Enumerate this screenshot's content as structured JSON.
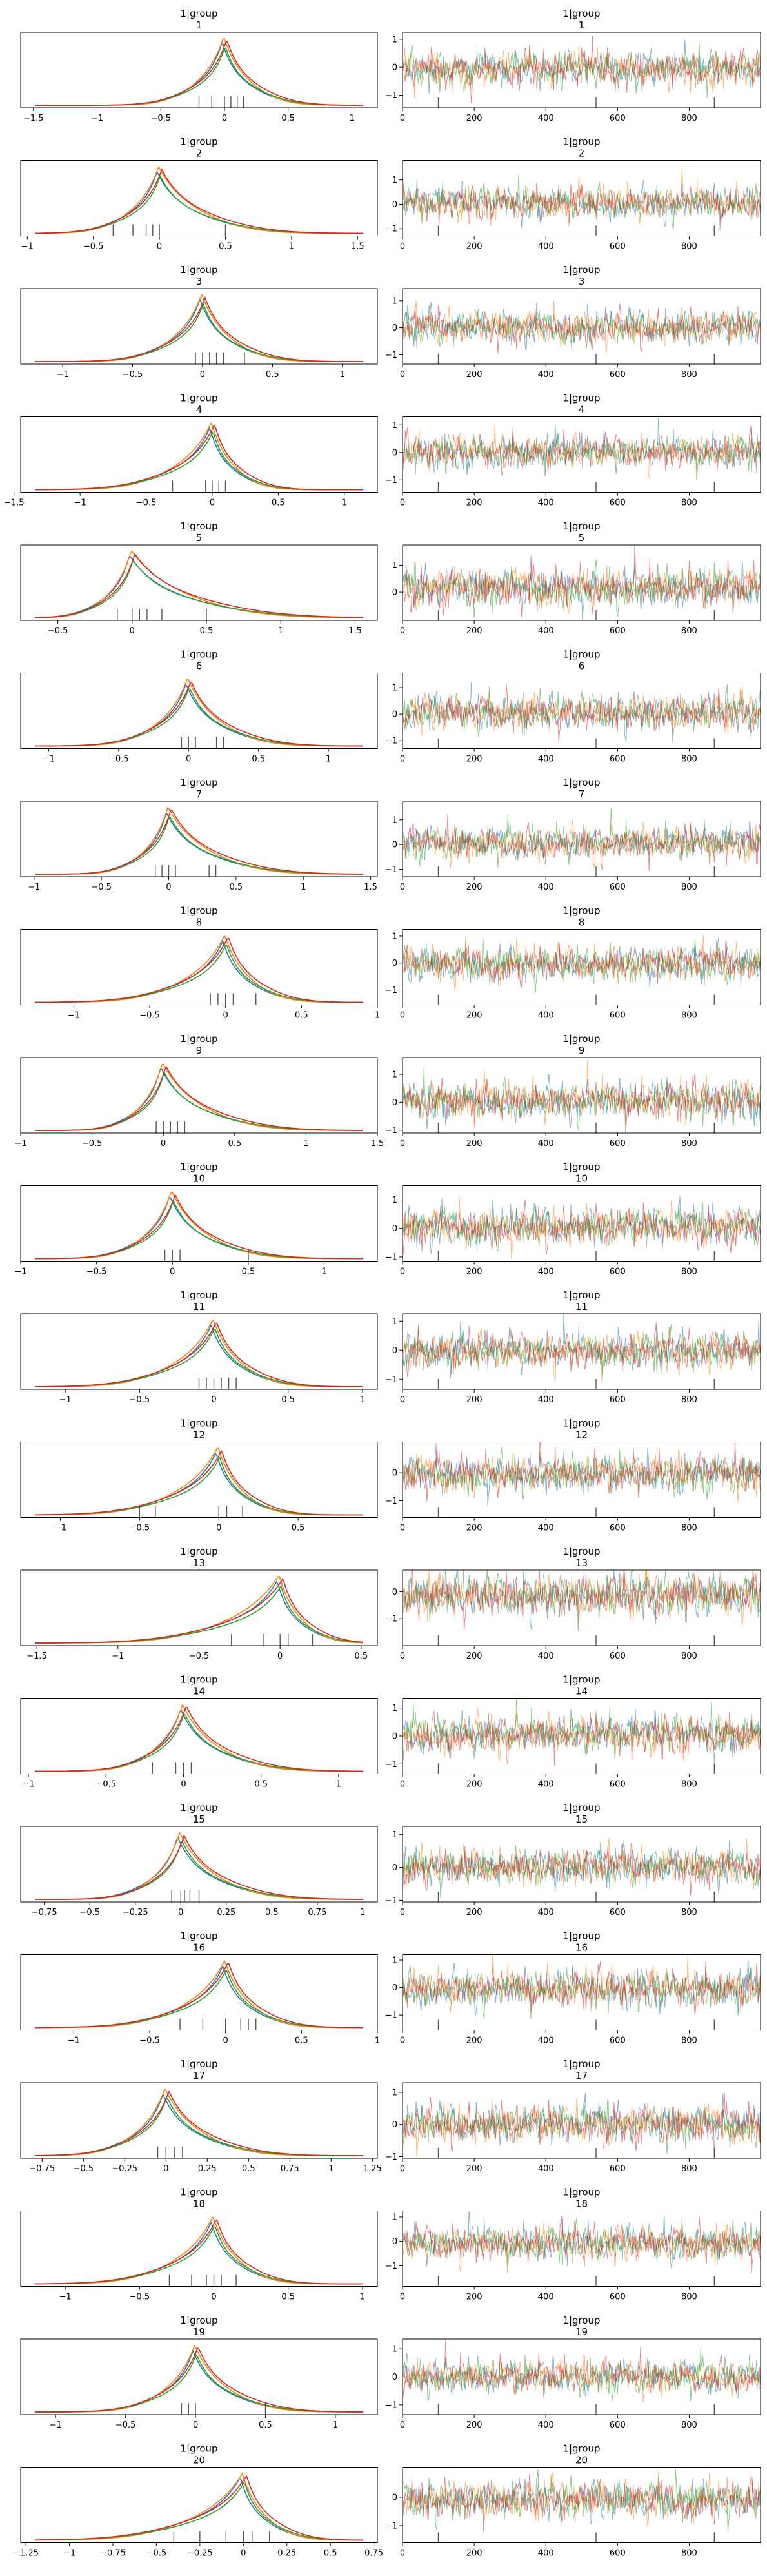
{
  "chart_data": {
    "type": "line",
    "layout": "trace-plot",
    "chains": [
      {
        "color": "#1f77b4"
      },
      {
        "color": "#ff7f0e"
      },
      {
        "color": "#2ca02c"
      },
      {
        "color": "#d62728"
      }
    ],
    "trace_x_ticks": [
      0,
      200,
      400,
      600,
      800
    ],
    "trace_draws": 1000,
    "rug_color": "#555555",
    "panels": [
      {
        "title_line1": "1|group",
        "title_line2": "1",
        "kde_xlim": [
          -1.6,
          1.2
        ],
        "kde_ticks": [
          -1.5,
          -1.0,
          -0.5,
          0.0,
          0.5,
          1.0
        ],
        "mode": 0.0,
        "scale_left": 0.12,
        "scale_right": 0.12,
        "peak": 1.0,
        "rug": [
          -0.2,
          -0.1,
          0.0,
          0.05,
          0.1,
          0.15
        ],
        "trace_ylim": [
          -1.45,
          1.25
        ],
        "trace_ticks": [
          -1,
          0,
          1
        ],
        "trace_center": -0.05,
        "trace_sd": 0.28
      },
      {
        "title_line1": "1|group",
        "title_line2": "2",
        "kde_xlim": [
          -1.05,
          1.65
        ],
        "kde_ticks": [
          -1.0,
          -0.5,
          0.0,
          0.5,
          1.0,
          1.5
        ],
        "mode": 0.0,
        "scale_left": 0.12,
        "scale_right": 0.18,
        "peak": 1.0,
        "rug": [
          -0.35,
          -0.2,
          -0.1,
          -0.05,
          0.0,
          0.5
        ],
        "trace_ylim": [
          -1.3,
          1.8
        ],
        "trace_ticks": [
          -1,
          0,
          1
        ],
        "trace_center": 0.05,
        "trace_sd": 0.3
      },
      {
        "title_line1": "1|group",
        "title_line2": "3",
        "kde_xlim": [
          -1.3,
          1.25
        ],
        "kde_ticks": [
          -1.0,
          -0.5,
          0.0,
          0.5,
          1.0
        ],
        "mode": 0.0,
        "scale_left": 0.12,
        "scale_right": 0.12,
        "peak": 1.0,
        "rug": [
          -0.05,
          0.0,
          0.05,
          0.1,
          0.15,
          0.3
        ],
        "trace_ylim": [
          -1.35,
          1.45
        ],
        "trace_ticks": [
          -1,
          0,
          1
        ],
        "trace_center": 0.0,
        "trace_sd": 0.28
      },
      {
        "title_line1": "1|group",
        "title_line2": "4",
        "kde_xlim": [
          -1.45,
          1.25
        ],
        "kde_ticks": [
          -1.5,
          -1.0,
          -0.5,
          0.0,
          0.5,
          1.0
        ],
        "mode": 0.0,
        "scale_left": 0.16,
        "scale_right": 0.1,
        "peak": 1.0,
        "rug": [
          -0.3,
          -0.05,
          0.0,
          0.05,
          0.1
        ],
        "trace_ylim": [
          -1.45,
          1.3
        ],
        "trace_ticks": [
          -1,
          0,
          1
        ],
        "trace_center": 0.0,
        "trace_sd": 0.27
      },
      {
        "title_line1": "1|group",
        "title_line2": "5",
        "kde_xlim": [
          -0.75,
          1.65
        ],
        "kde_ticks": [
          -0.5,
          0.0,
          0.5,
          1.0,
          1.5
        ],
        "mode": 0.0,
        "scale_left": 0.09,
        "scale_right": 0.22,
        "peak": 1.0,
        "rug": [
          -0.1,
          0.0,
          0.05,
          0.1,
          0.2,
          0.5
        ],
        "trace_ylim": [
          -1.05,
          1.75
        ],
        "trace_ticks": [
          0,
          1
        ],
        "trace_center": 0.15,
        "trace_sd": 0.33
      },
      {
        "title_line1": "1|group",
        "title_line2": "6",
        "kde_xlim": [
          -1.2,
          1.35
        ],
        "kde_ticks": [
          -1.0,
          -0.5,
          0.0,
          0.5,
          1.0
        ],
        "mode": 0.0,
        "scale_left": 0.12,
        "scale_right": 0.14,
        "peak": 1.0,
        "rug": [
          -0.05,
          0.0,
          0.05,
          0.2,
          0.25
        ],
        "trace_ylim": [
          -1.3,
          1.55
        ],
        "trace_ticks": [
          -1,
          0,
          1
        ],
        "trace_center": 0.05,
        "trace_sd": 0.3
      },
      {
        "title_line1": "1|group",
        "title_line2": "7",
        "kde_xlim": [
          -1.1,
          1.55
        ],
        "kde_ticks": [
          -1.0,
          -0.5,
          0.0,
          0.5,
          1.0,
          1.5
        ],
        "mode": 0.0,
        "scale_left": 0.1,
        "scale_right": 0.18,
        "peak": 1.0,
        "rug": [
          -0.1,
          -0.05,
          0.0,
          0.05,
          0.3,
          0.35
        ],
        "trace_ylim": [
          -1.3,
          1.75
        ],
        "trace_ticks": [
          -1,
          0,
          1
        ],
        "trace_center": 0.05,
        "trace_sd": 0.3
      },
      {
        "title_line1": "1|group",
        "title_line2": "8",
        "kde_xlim": [
          -1.35,
          1.0
        ],
        "kde_ticks": [
          -1.0,
          -0.5,
          0.0,
          0.5,
          1.0
        ],
        "mode": 0.0,
        "scale_left": 0.15,
        "scale_right": 0.1,
        "peak": 1.0,
        "rug": [
          -0.1,
          -0.05,
          0.0,
          0.05,
          0.2
        ],
        "trace_ylim": [
          -1.55,
          1.25
        ],
        "trace_ticks": [
          -1,
          0,
          1
        ],
        "trace_center": -0.05,
        "trace_sd": 0.3
      },
      {
        "title_line1": "1|group",
        "title_line2": "9",
        "kde_xlim": [
          -1.0,
          1.5
        ],
        "kde_ticks": [
          -1.0,
          -0.5,
          0.0,
          0.5,
          1.0,
          1.5
        ],
        "mode": 0.0,
        "scale_left": 0.09,
        "scale_right": 0.17,
        "peak": 1.0,
        "rug": [
          -0.05,
          0.0,
          0.05,
          0.1,
          0.15
        ],
        "trace_ylim": [
          -1.1,
          1.6
        ],
        "trace_ticks": [
          -1,
          0,
          1
        ],
        "trace_center": 0.05,
        "trace_sd": 0.3
      },
      {
        "title_line1": "1|group",
        "title_line2": "10",
        "kde_xlim": [
          -1.0,
          1.35
        ],
        "kde_ticks": [
          -1.0,
          -0.5,
          0.0,
          0.5,
          1.0
        ],
        "mode": 0.0,
        "scale_left": 0.1,
        "scale_right": 0.14,
        "peak": 1.0,
        "rug": [
          -0.05,
          0.0,
          0.05,
          0.5
        ],
        "trace_ylim": [
          -1.15,
          1.5
        ],
        "trace_ticks": [
          -1,
          0,
          1
        ],
        "trace_center": 0.05,
        "trace_sd": 0.3
      },
      {
        "title_line1": "1|group",
        "title_line2": "11",
        "kde_xlim": [
          -1.3,
          1.1
        ],
        "kde_ticks": [
          -1.0,
          -0.5,
          0.0,
          0.5,
          1.0
        ],
        "mode": 0.0,
        "scale_left": 0.15,
        "scale_right": 0.11,
        "peak": 1.0,
        "rug": [
          -0.1,
          -0.05,
          0.0,
          0.05,
          0.1,
          0.15
        ],
        "trace_ylim": [
          -1.35,
          1.25
        ],
        "trace_ticks": [
          -1,
          0,
          1
        ],
        "trace_center": -0.05,
        "trace_sd": 0.28
      },
      {
        "title_line1": "1|group",
        "title_line2": "12",
        "kde_xlim": [
          -1.25,
          1.0
        ],
        "kde_ticks": [
          -1.0,
          -0.5,
          0.0,
          0.5
        ],
        "mode": 0.0,
        "scale_left": 0.15,
        "scale_right": 0.09,
        "peak": 1.0,
        "rug": [
          -0.5,
          -0.4,
          0.0,
          0.05,
          0.15
        ],
        "trace_ylim": [
          -1.6,
          1.1
        ],
        "trace_ticks": [
          -1,
          0
        ],
        "trace_center": -0.05,
        "trace_sd": 0.3
      },
      {
        "title_line1": "1|group",
        "title_line2": "13",
        "kde_xlim": [
          -1.6,
          0.6
        ],
        "kde_ticks": [
          -1.5,
          -1.0,
          -0.5,
          0.0,
          0.5
        ],
        "mode": 0.0,
        "scale_left": 0.18,
        "scale_right": 0.08,
        "peak": 1.0,
        "rug": [
          -0.3,
          -0.1,
          0.0,
          0.05,
          0.2
        ],
        "trace_ylim": [
          -2.0,
          0.8
        ],
        "trace_ticks": [
          -1,
          0
        ],
        "trace_center": -0.15,
        "trace_sd": 0.35
      },
      {
        "title_line1": "1|group",
        "title_line2": "14",
        "kde_xlim": [
          -1.05,
          1.25
        ],
        "kde_ticks": [
          -1.0,
          -0.5,
          0.0,
          0.5,
          1.0
        ],
        "mode": 0.0,
        "scale_left": 0.1,
        "scale_right": 0.14,
        "peak": 1.0,
        "rug": [
          -0.2,
          -0.05,
          0.0,
          0.05
        ],
        "trace_ylim": [
          -1.35,
          1.35
        ],
        "trace_ticks": [
          -1,
          0,
          1
        ],
        "trace_center": 0.05,
        "trace_sd": 0.3
      },
      {
        "title_line1": "1|group",
        "title_line2": "15",
        "kde_xlim": [
          -0.88,
          1.08
        ],
        "kde_ticks": [
          -0.75,
          -0.5,
          -0.25,
          0.0,
          0.25,
          0.5,
          0.75,
          1.0
        ],
        "mode": 0.0,
        "scale_left": 0.08,
        "scale_right": 0.12,
        "peak": 1.0,
        "rug": [
          -0.05,
          0.0,
          0.02,
          0.05,
          0.1
        ],
        "trace_ylim": [
          -1.05,
          1.25
        ],
        "trace_ticks": [
          -1,
          0,
          1
        ],
        "trace_center": 0.0,
        "trace_sd": 0.25
      },
      {
        "title_line1": "1|group",
        "title_line2": "16",
        "kde_xlim": [
          -1.35,
          1.0
        ],
        "kde_ticks": [
          -1.0,
          -0.5,
          0.0,
          0.5,
          1.0
        ],
        "mode": 0.0,
        "scale_left": 0.15,
        "scale_right": 0.1,
        "peak": 1.0,
        "rug": [
          -0.3,
          -0.15,
          0.0,
          0.1,
          0.15,
          0.2
        ],
        "trace_ylim": [
          -1.55,
          1.2
        ],
        "trace_ticks": [
          -1,
          0,
          1
        ],
        "trace_center": -0.05,
        "trace_sd": 0.3
      },
      {
        "title_line1": "1|group",
        "title_line2": "17",
        "kde_xlim": [
          -0.88,
          1.28
        ],
        "kde_ticks": [
          -0.75,
          -0.5,
          -0.25,
          0.0,
          0.25,
          0.5,
          0.75,
          1.0,
          1.25
        ],
        "mode": 0.0,
        "scale_left": 0.1,
        "scale_right": 0.13,
        "peak": 1.0,
        "rug": [
          -0.05,
          0.0,
          0.05,
          0.1
        ],
        "trace_ylim": [
          -1.05,
          1.3
        ],
        "trace_ticks": [
          -1,
          0,
          1
        ],
        "trace_center": 0.0,
        "trace_sd": 0.27
      },
      {
        "title_line1": "1|group",
        "title_line2": "18",
        "kde_xlim": [
          -1.3,
          1.1
        ],
        "kde_ticks": [
          -1.0,
          -0.5,
          0.0,
          0.5,
          1.0
        ],
        "mode": 0.0,
        "scale_left": 0.15,
        "scale_right": 0.1,
        "peak": 1.0,
        "rug": [
          -0.3,
          -0.15,
          -0.05,
          0.0,
          0.05,
          0.15
        ],
        "trace_ylim": [
          -1.85,
          1.25
        ],
        "trace_ticks": [
          -1,
          0,
          1
        ],
        "trace_center": -0.1,
        "trace_sd": 0.32
      },
      {
        "title_line1": "1|group",
        "title_line2": "19",
        "kde_xlim": [
          -1.25,
          1.3
        ],
        "kde_ticks": [
          -1.0,
          -0.5,
          0.0,
          0.5,
          1.0
        ],
        "mode": 0.0,
        "scale_left": 0.12,
        "scale_right": 0.14,
        "peak": 1.0,
        "rug": [
          -0.1,
          -0.05,
          0.0,
          0.5
        ],
        "trace_ylim": [
          -1.35,
          1.35
        ],
        "trace_ticks": [
          -1,
          0,
          1
        ],
        "trace_center": 0.0,
        "trace_sd": 0.27
      },
      {
        "title_line1": "1|group",
        "title_line2": "20",
        "kde_xlim": [
          -1.28,
          0.77
        ],
        "kde_ticks": [
          -1.25,
          -1.0,
          -0.75,
          -0.5,
          -0.25,
          0.0,
          0.25,
          0.5,
          0.75
        ],
        "mode": 0.0,
        "scale_left": 0.16,
        "scale_right": 0.08,
        "peak": 1.0,
        "rug": [
          -0.4,
          -0.25,
          -0.1,
          0.0,
          0.05,
          0.15
        ],
        "trace_ylim": [
          -1.6,
          1.05
        ],
        "trace_ticks": [
          -1,
          0
        ],
        "trace_center": -0.1,
        "trace_sd": 0.3
      }
    ]
  }
}
